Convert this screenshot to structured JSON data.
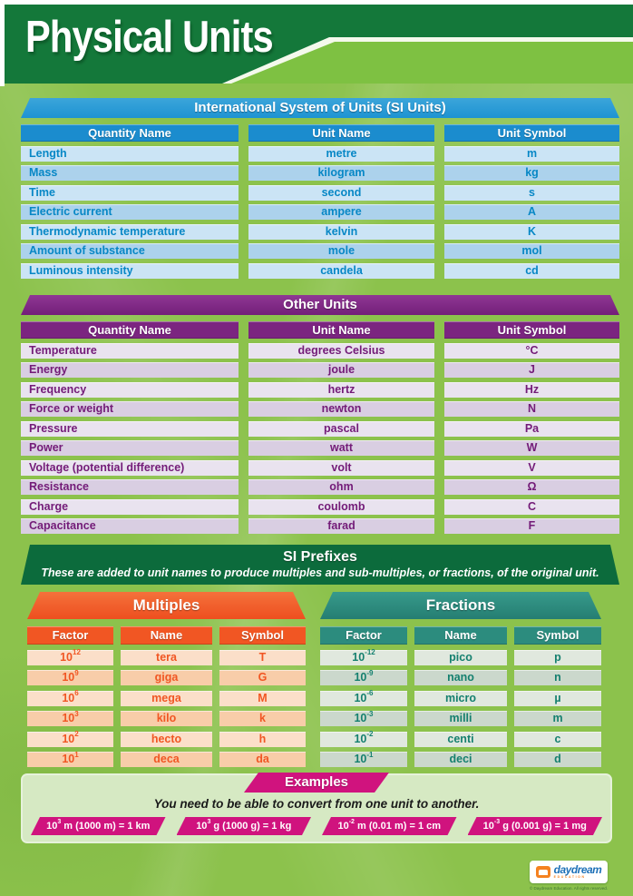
{
  "poster": {
    "title": "Physical Units"
  },
  "si_units": {
    "title": "International System of Units (SI Units)",
    "columns": [
      "Quantity Name",
      "Unit Name",
      "Unit Symbol"
    ],
    "rows": [
      {
        "quantity": "Length",
        "unit": "metre",
        "symbol": "m"
      },
      {
        "quantity": "Mass",
        "unit": "kilogram",
        "symbol": "kg"
      },
      {
        "quantity": "Time",
        "unit": "second",
        "symbol": "s"
      },
      {
        "quantity": "Electric current",
        "unit": "ampere",
        "symbol": "A"
      },
      {
        "quantity": "Thermodynamic temperature",
        "unit": "kelvin",
        "symbol": "K"
      },
      {
        "quantity": "Amount of substance",
        "unit": "mole",
        "symbol": "mol"
      },
      {
        "quantity": "Luminous intensity",
        "unit": "candela",
        "symbol": "cd"
      }
    ]
  },
  "other_units": {
    "title": "Other Units",
    "columns": [
      "Quantity Name",
      "Unit Name",
      "Unit Symbol"
    ],
    "rows": [
      {
        "quantity": "Temperature",
        "unit": "degrees Celsius",
        "symbol": "°C"
      },
      {
        "quantity": "Energy",
        "unit": "joule",
        "symbol": "J"
      },
      {
        "quantity": "Frequency",
        "unit": "hertz",
        "symbol": "Hz"
      },
      {
        "quantity": "Force or weight",
        "unit": "newton",
        "symbol": "N"
      },
      {
        "quantity": "Pressure",
        "unit": "pascal",
        "symbol": "Pa"
      },
      {
        "quantity": "Power",
        "unit": "watt",
        "symbol": "W"
      },
      {
        "quantity": "Voltage (potential difference)",
        "unit": "volt",
        "symbol": "V"
      },
      {
        "quantity": "Resistance",
        "unit": "ohm",
        "symbol": "Ω"
      },
      {
        "quantity": "Charge",
        "unit": "coulomb",
        "symbol": "C"
      },
      {
        "quantity": "Capacitance",
        "unit": "farad",
        "symbol": "F"
      }
    ]
  },
  "prefixes": {
    "title": "SI Prefixes",
    "subtitle": "These are added to unit names to produce multiples and sub-multiples, or fractions, of the original unit.",
    "multiples": {
      "title": "Multiples",
      "columns": [
        "Factor",
        "Name",
        "Symbol"
      ],
      "rows": [
        {
          "base": "10",
          "exp": "12",
          "name": "tera",
          "symbol": "T"
        },
        {
          "base": "10",
          "exp": "9",
          "name": "giga",
          "symbol": "G"
        },
        {
          "base": "10",
          "exp": "6",
          "name": "mega",
          "symbol": "M"
        },
        {
          "base": "10",
          "exp": "3",
          "name": "kilo",
          "symbol": "k"
        },
        {
          "base": "10",
          "exp": "2",
          "name": "hecto",
          "symbol": "h"
        },
        {
          "base": "10",
          "exp": "1",
          "name": "deca",
          "symbol": "da"
        }
      ]
    },
    "fractions": {
      "title": "Fractions",
      "columns": [
        "Factor",
        "Name",
        "Symbol"
      ],
      "rows": [
        {
          "base": "10",
          "exp": "-12",
          "name": "pico",
          "symbol": "p"
        },
        {
          "base": "10",
          "exp": "-9",
          "name": "nano",
          "symbol": "n"
        },
        {
          "base": "10",
          "exp": "-6",
          "name": "micro",
          "symbol": "µ"
        },
        {
          "base": "10",
          "exp": "-3",
          "name": "milli",
          "symbol": "m"
        },
        {
          "base": "10",
          "exp": "-2",
          "name": "centi",
          "symbol": "c"
        },
        {
          "base": "10",
          "exp": "-1",
          "name": "deci",
          "symbol": "d"
        }
      ]
    }
  },
  "examples": {
    "title": "Examples",
    "instruction": "You need to be able to convert from one unit to another.",
    "items": [
      {
        "base": "10",
        "exp": "3",
        "rest": " m (1000 m) = 1 km"
      },
      {
        "base": "10",
        "exp": "3",
        "rest": " g (1000 g) = 1 kg"
      },
      {
        "base": "10",
        "exp": "-2",
        "rest": " m (0.01 m) = 1 cm"
      },
      {
        "base": "10",
        "exp": "-3",
        "rest": " g (0.001 g) = 1 mg"
      }
    ]
  },
  "footer": {
    "brand": "daydream",
    "brand_sub": "EDUCATION",
    "copyright": "© Daydream Education. All rights reserved."
  },
  "colors": {
    "background_green": "#8CC24C",
    "banner_dark_green": "#14783A",
    "banner_light_green": "#7EC142",
    "si_blue": "#1E93D2",
    "other_purple": "#7B2580",
    "prefix_dark_green": "#0C6B3C",
    "multiples_orange": "#F15623",
    "fractions_teal": "#2C8C7E",
    "examples_magenta": "#D0137E"
  }
}
